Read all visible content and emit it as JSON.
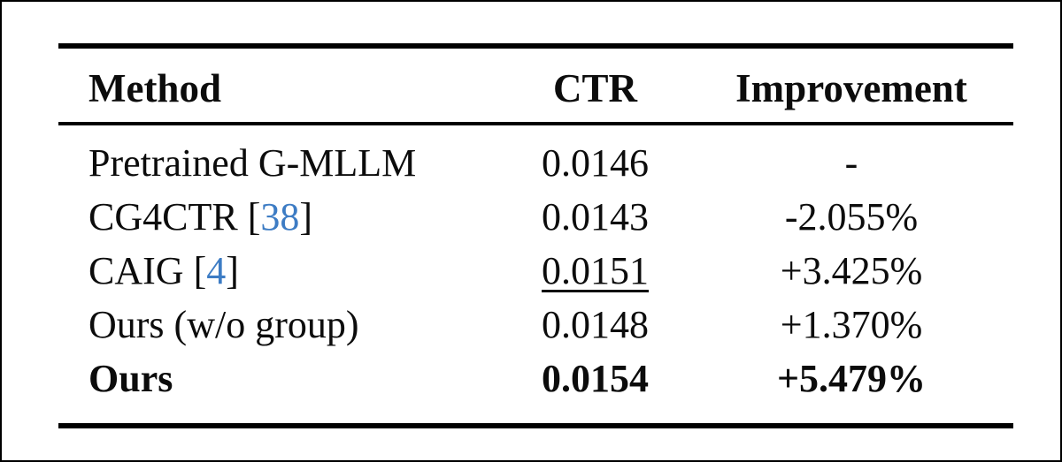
{
  "colors": {
    "citation_blue": "#3d7cc4",
    "rule_black": "#000000",
    "text_black": "#0c0c0c",
    "background": "#ffffff"
  },
  "table": {
    "columns": [
      "Method",
      "CTR",
      "Improvement"
    ],
    "rows": [
      {
        "method": "Pretrained G-MLLM",
        "citation": "",
        "ctr": "0.0146",
        "improvement": "-",
        "bold": false,
        "ctr_underlined": false
      },
      {
        "method": "CG4CTR",
        "citation": "38",
        "ctr": "0.0143",
        "improvement": "-2.055%",
        "bold": false,
        "ctr_underlined": false
      },
      {
        "method": "CAIG",
        "citation": "4",
        "ctr": "0.0151",
        "improvement": "+3.425%",
        "bold": false,
        "ctr_underlined": true
      },
      {
        "method": "Ours (w/o group)",
        "citation": "",
        "ctr": "0.0148",
        "improvement": "+1.370%",
        "bold": false,
        "ctr_underlined": false
      },
      {
        "method": "Ours",
        "citation": "",
        "ctr": "0.0154",
        "improvement": "+5.479%",
        "bold": true,
        "ctr_underlined": false
      }
    ]
  }
}
